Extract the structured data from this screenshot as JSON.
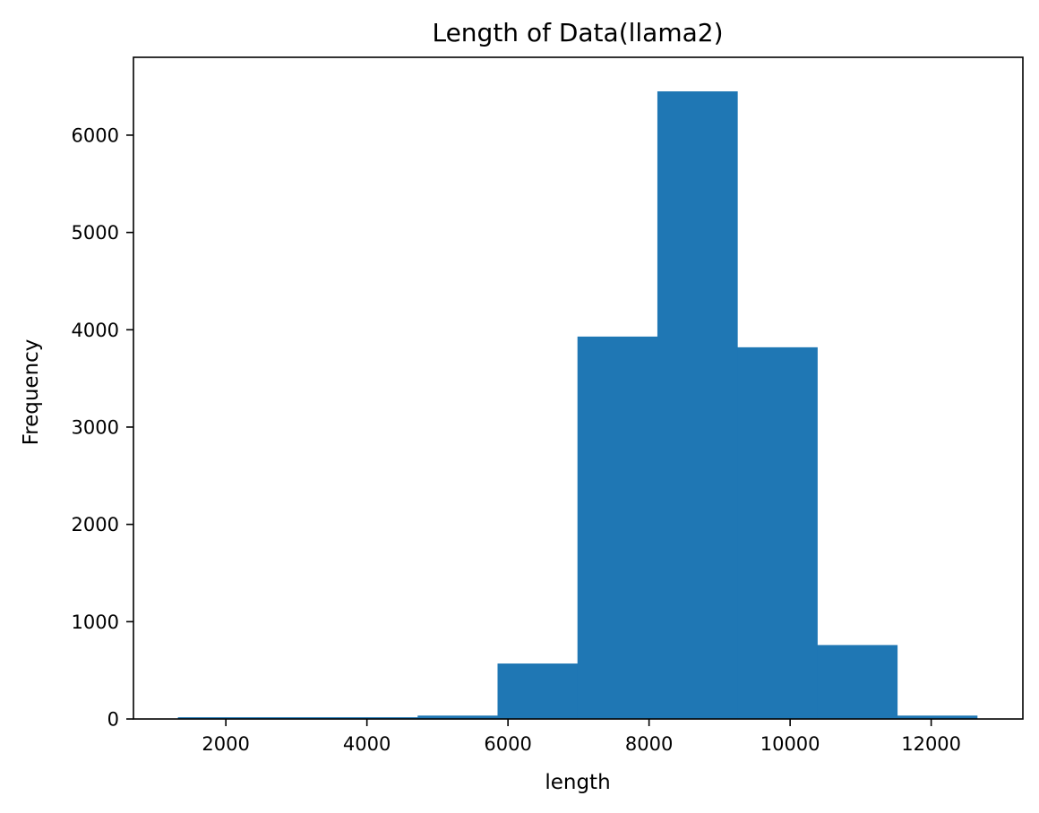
{
  "chart_data": {
    "type": "bar",
    "title": "Length of Data(llama2)",
    "xlabel": "length",
    "ylabel": "Frequency",
    "xlim": [
      690,
      13300
    ],
    "ylim": [
      0,
      6800
    ],
    "xticks": [
      2000,
      4000,
      6000,
      8000,
      10000,
      12000
    ],
    "yticks": [
      0,
      1000,
      2000,
      3000,
      4000,
      5000,
      6000
    ],
    "bin_edges": [
      1320,
      2453,
      3586,
      4719,
      5852,
      6985,
      8118,
      9251,
      10384,
      11517,
      12650
    ],
    "values": [
      18,
      18,
      18,
      35,
      570,
      3930,
      6450,
      3820,
      760,
      35
    ],
    "bar_color": "#1f77b4",
    "grid": false,
    "legend": "none"
  }
}
